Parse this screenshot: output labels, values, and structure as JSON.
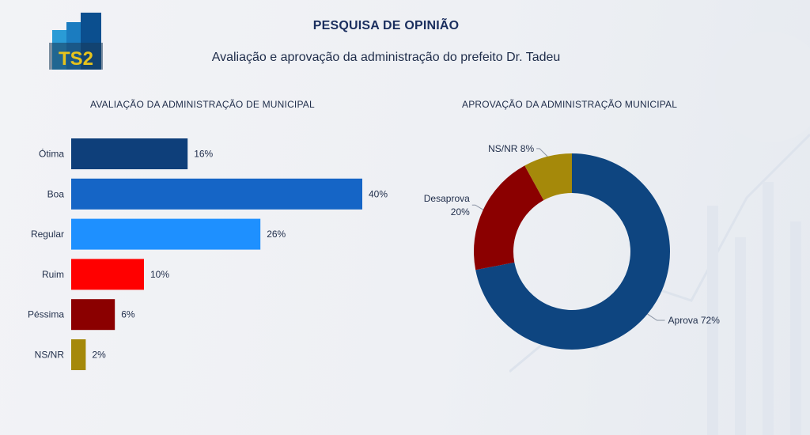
{
  "header": {
    "logo_text": "TS2",
    "title": "PESQUISA DE OPINIÃO",
    "subtitle": "Avaliação e aprovação da administração do prefeito Dr. Tadeu"
  },
  "chart_data": [
    {
      "type": "bar",
      "orientation": "horizontal",
      "title": "AVALIAÇÃO DA ADMINISTRAÇÃO DE MUNICIPAL",
      "categories": [
        "Ótima",
        "Boa",
        "Regular",
        "Ruim",
        "Péssima",
        "NS/NR"
      ],
      "values": [
        16,
        40,
        26,
        10,
        6,
        2
      ],
      "labels": [
        "16%",
        "40%",
        "26%",
        "10%",
        "6%",
        "2%"
      ],
      "colors": [
        "#0e3f7a",
        "#1565c6",
        "#1e90ff",
        "#ff0000",
        "#8b0000",
        "#a5890a"
      ],
      "xlim": [
        0,
        40
      ],
      "grid": false
    },
    {
      "type": "pie",
      "donut": true,
      "title": "APROVAÇÃO DA ADMINISTRAÇÃO MUNICIPAL",
      "slices": [
        {
          "name": "Aprova",
          "value": 72,
          "label": "Aprova 72%",
          "color": "#0e4580"
        },
        {
          "name": "Desaprova",
          "value": 20,
          "label_lines": [
            "Desaprova",
            "20%"
          ],
          "color": "#8b0000"
        },
        {
          "name": "NS/NR",
          "value": 8,
          "label": "NS/NR 8%",
          "color": "#a5890a"
        }
      ]
    }
  ]
}
